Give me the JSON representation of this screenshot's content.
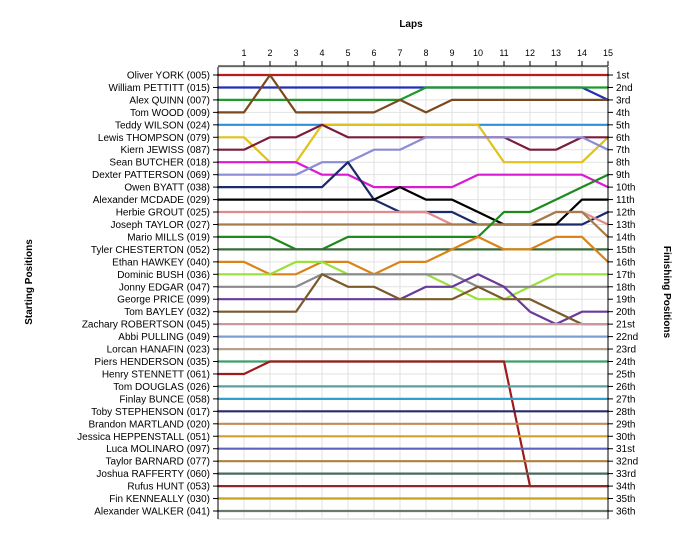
{
  "chart_data": {
    "type": "line",
    "title": "",
    "xlabel": "Laps",
    "ylabel_left": "Starting Positions",
    "ylabel_right": "Finishing Positions",
    "x": [
      0,
      1,
      2,
      3,
      4,
      5,
      6,
      7,
      8,
      9,
      10,
      11,
      12,
      13,
      14,
      15
    ],
    "x_tick_labels": [
      "1",
      "2",
      "3",
      "4",
      "5",
      "6",
      "7",
      "8",
      "9",
      "10",
      "11",
      "12",
      "13",
      "14",
      "15"
    ],
    "ylim": [
      1,
      36
    ],
    "grid": true,
    "drivers": [
      "Oliver YORK (005)",
      "William PETTITT (015)",
      "Alex QUINN (007)",
      "Tom WOOD (009)",
      "Teddy WILSON (024)",
      "Lewis THOMPSON (079)",
      "Kiern JEWISS (087)",
      "Sean BUTCHER (018)",
      "Dexter PATTERSON (069)",
      "Owen BYATT (038)",
      "Alexander MCDADE (029)",
      "Herbie GROUT (025)",
      "Joseph TAYLOR (027)",
      "Mario MILLS (019)",
      "Tyler CHESTERTON (052)",
      "Ethan HAWKEY (040)",
      "Dominic BUSH (036)",
      "Jonny EDGAR (047)",
      "George PRICE (099)",
      "Tom BAYLEY (032)",
      "Zachary ROBERTSON (045)",
      "Abbi PULLING (049)",
      "Lorcan HANAFIN (023)",
      "Piers HENDERSON (035)",
      "Henry STENNETT (061)",
      "Tom DOUGLAS (026)",
      "Finlay BUNCE (058)",
      "Toby STEPHENSON (017)",
      "Brandon MARTLAND (020)",
      "Jessica HEPPENSTALL (051)",
      "Luca MOLINARO (097)",
      "Taylor BARNARD (077)",
      "Joshua RAFFERTY (060)",
      "Rufus HUNT (053)",
      "Fin KENNEALLY (030)",
      "Alexander WALKER (041)"
    ],
    "finishing_positions": [
      "1st",
      "2nd",
      "3rd",
      "4th",
      "5th",
      "6th",
      "7th",
      "8th",
      "9th",
      "10th",
      "11th",
      "12th",
      "13th",
      "14th",
      "15th",
      "16th",
      "17th",
      "18th",
      "19th",
      "20th",
      "21st",
      "22nd",
      "23rd",
      "24th",
      "25th",
      "26th",
      "27th",
      "28th",
      "29th",
      "30th",
      "31st",
      "32nd",
      "33rd",
      "34th",
      "35th",
      "36th"
    ],
    "series": [
      {
        "color": "#c0171e",
        "positions": [
          1,
          1,
          1,
          1,
          1,
          1,
          1,
          1,
          1,
          1,
          1,
          1,
          1,
          1,
          1,
          1
        ]
      },
      {
        "color": "#1f2fb8",
        "positions": [
          2,
          2,
          2,
          2,
          2,
          2,
          2,
          2,
          2,
          2,
          2,
          2,
          2,
          2,
          2,
          3
        ]
      },
      {
        "color": "#1e9a2a",
        "positions": [
          3,
          3,
          3,
          3,
          3,
          3,
          3,
          3,
          2,
          2,
          2,
          2,
          2,
          2,
          2,
          2
        ]
      },
      {
        "color": "#7a4a1e",
        "positions": [
          4,
          4,
          1,
          4,
          4,
          4,
          4,
          3,
          4,
          3,
          3,
          3,
          3,
          3,
          3,
          3
        ]
      },
      {
        "color": "#2f8fd8",
        "positions": [
          5,
          5,
          5,
          5,
          5,
          5,
          5,
          5,
          5,
          5,
          5,
          5,
          5,
          5,
          5,
          5
        ]
      },
      {
        "color": "#e0c21a",
        "positions": [
          6,
          6,
          8,
          8,
          5,
          5,
          5,
          5,
          5,
          5,
          5,
          8,
          8,
          8,
          8,
          6
        ]
      },
      {
        "color": "#7b1c3e",
        "positions": [
          7,
          7,
          6,
          6,
          5,
          6,
          6,
          6,
          6,
          6,
          6,
          6,
          7,
          7,
          6,
          6
        ]
      },
      {
        "color": "#d81ad0",
        "positions": [
          8,
          8,
          8,
          8,
          9,
          9,
          10,
          10,
          10,
          10,
          9,
          9,
          9,
          9,
          9,
          10
        ]
      },
      {
        "color": "#8b8bd6",
        "positions": [
          9,
          9,
          9,
          9,
          8,
          8,
          7,
          7,
          6,
          6,
          6,
          6,
          6,
          6,
          6,
          7
        ]
      },
      {
        "color": "#1a2a6a",
        "positions": [
          10,
          10,
          10,
          10,
          10,
          8,
          11,
          12,
          12,
          12,
          13,
          13,
          13,
          13,
          13,
          12
        ]
      },
      {
        "color": "#000000",
        "positions": [
          11,
          11,
          11,
          11,
          11,
          11,
          11,
          10,
          11,
          11,
          12,
          13,
          13,
          13,
          11,
          11
        ]
      },
      {
        "color": "#e28a8a",
        "positions": [
          12,
          12,
          12,
          12,
          12,
          12,
          12,
          12,
          12,
          13,
          13,
          13,
          13,
          12,
          12,
          13
        ]
      },
      {
        "color": "#a67c4a",
        "positions": [
          13,
          13,
          13,
          13,
          13,
          13,
          13,
          13,
          13,
          13,
          13,
          13,
          13,
          12,
          12,
          14
        ]
      },
      {
        "color": "#1e8a1e",
        "positions": [
          14,
          14,
          14,
          15,
          15,
          14,
          14,
          14,
          14,
          14,
          14,
          12,
          12,
          11,
          10,
          9
        ]
      },
      {
        "color": "#3a6a3a",
        "positions": [
          15,
          15,
          15,
          15,
          15,
          15,
          15,
          15,
          15,
          15,
          15,
          15,
          15,
          15,
          15,
          15
        ]
      },
      {
        "color": "#d9831a",
        "positions": [
          16,
          16,
          17,
          17,
          16,
          16,
          17,
          16,
          16,
          15,
          14,
          15,
          15,
          14,
          14,
          16
        ]
      },
      {
        "color": "#9be03a",
        "positions": [
          17,
          17,
          17,
          16,
          16,
          17,
          17,
          17,
          17,
          18,
          19,
          19,
          18,
          17,
          17,
          17
        ]
      },
      {
        "color": "#8a8a8a",
        "positions": [
          18,
          18,
          18,
          18,
          17,
          17,
          17,
          17,
          17,
          17,
          18,
          18,
          18,
          18,
          18,
          18
        ]
      },
      {
        "color": "#6a3a9a",
        "positions": [
          19,
          19,
          19,
          19,
          19,
          19,
          19,
          19,
          18,
          18,
          17,
          18,
          20,
          21,
          20,
          20
        ]
      },
      {
        "color": "#7a5a2a",
        "positions": [
          20,
          20,
          20,
          20,
          17,
          18,
          18,
          19,
          19,
          19,
          18,
          19,
          19,
          20,
          21,
          21
        ]
      },
      {
        "color": "#c89aa0",
        "positions": [
          21,
          21,
          21,
          21,
          21,
          21,
          21,
          21,
          21,
          21,
          21,
          21,
          21,
          21,
          21,
          21
        ]
      },
      {
        "color": "#7aa0d0",
        "positions": [
          22,
          22,
          22,
          22,
          22,
          22,
          22,
          22,
          22,
          22,
          22,
          22,
          22,
          22,
          22,
          22
        ]
      },
      {
        "color": "#b8a090",
        "positions": [
          23,
          23,
          23,
          23,
          23,
          23,
          23,
          23,
          23,
          23,
          23,
          23,
          23,
          23,
          23,
          23
        ]
      },
      {
        "color": "#3aa06a",
        "positions": [
          24,
          24,
          24,
          24,
          24,
          24,
          24,
          24,
          24,
          24,
          24,
          24,
          24,
          24,
          24,
          24
        ]
      },
      {
        "color": "#a01a1a",
        "positions": [
          25,
          25,
          24,
          24,
          24,
          24,
          24,
          24,
          24,
          24,
          24,
          24,
          34,
          34,
          34,
          34
        ]
      },
      {
        "color": "#5aa0a0",
        "positions": [
          26,
          26,
          26,
          26,
          26,
          26,
          26,
          26,
          26,
          26,
          26,
          26,
          26,
          26,
          26,
          26
        ]
      },
      {
        "color": "#30a0d0",
        "positions": [
          27,
          27,
          27,
          27,
          27,
          27,
          27,
          27,
          27,
          27,
          27,
          27,
          27,
          27,
          27,
          27
        ]
      },
      {
        "color": "#2a2a6a",
        "positions": [
          28,
          28,
          28,
          28,
          28,
          28,
          28,
          28,
          28,
          28,
          28,
          28,
          28,
          28,
          28,
          28
        ]
      },
      {
        "color": "#c08a5a",
        "positions": [
          29,
          29,
          29,
          29,
          29,
          29,
          29,
          29,
          29,
          29,
          29,
          29,
          29,
          29,
          29,
          29
        ]
      },
      {
        "color": "#d0a030",
        "positions": [
          30,
          30,
          30,
          30,
          30,
          30,
          30,
          30,
          30,
          30,
          30,
          30,
          30,
          30,
          30,
          30
        ]
      },
      {
        "color": "#6060c0",
        "positions": [
          31,
          31,
          31,
          31,
          31,
          31,
          31,
          31,
          31,
          31,
          31,
          31,
          31,
          31,
          31,
          31
        ]
      },
      {
        "color": "#b08040",
        "positions": [
          32,
          32,
          32,
          32,
          32,
          32,
          32,
          32,
          32,
          32,
          32,
          32,
          32,
          32,
          32,
          32
        ]
      },
      {
        "color": "#4a6a5a",
        "positions": [
          33,
          33,
          33,
          33,
          33,
          33,
          33,
          33,
          33,
          33,
          33,
          33,
          33,
          33,
          33,
          33
        ]
      },
      {
        "color": "#8a2a2a",
        "positions": [
          34,
          34,
          34,
          34,
          34,
          34,
          34,
          34,
          34,
          34,
          34,
          34,
          34,
          34,
          34,
          34
        ]
      },
      {
        "color": "#c8a020",
        "positions": [
          35,
          35,
          35,
          35,
          35,
          35,
          35,
          35,
          35,
          35,
          35,
          35,
          35,
          35,
          35,
          35
        ]
      },
      {
        "color": "#6a7a6a",
        "positions": [
          36,
          36,
          36,
          36,
          36,
          36,
          36,
          36,
          36,
          36,
          36,
          36,
          36,
          36,
          36,
          36
        ]
      }
    ]
  }
}
